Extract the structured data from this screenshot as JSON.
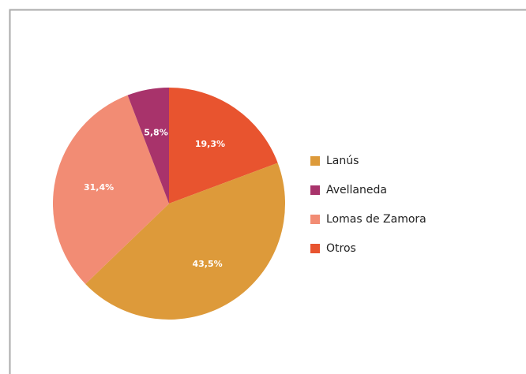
{
  "chart_data": {
    "type": "pie",
    "categories": [
      "Lanús",
      "Avellaneda",
      "Lomas de Zamora",
      "Otros"
    ],
    "values": [
      43.5,
      5.8,
      31.4,
      19.3
    ],
    "value_labels": [
      "43,5%",
      "5,8%",
      "31,4%",
      "19,3%"
    ],
    "colors": [
      "#dd9a3a",
      "#a8336b",
      "#f28c74",
      "#e8542f"
    ],
    "legend": "right"
  }
}
